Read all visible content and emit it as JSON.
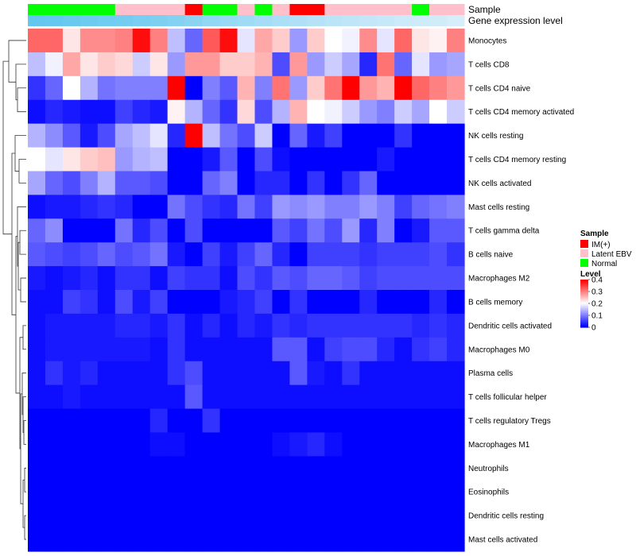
{
  "chart_data": {
    "type": "heatmap",
    "annotation_tracks": [
      {
        "name": "Sample",
        "values": [
          "Normal",
          "Normal",
          "Normal",
          "Normal",
          "Normal",
          "Latent EBV",
          "Latent EBV",
          "Latent EBV",
          "Latent EBV",
          "IM(+)",
          "Normal",
          "Normal",
          "Latent EBV",
          "Normal",
          "Latent EBV",
          "IM(+)",
          "IM(+)",
          "Latent EBV",
          "Latent EBV",
          "Latent EBV",
          "Latent EBV",
          "Latent EBV",
          "Normal",
          "Latent EBV",
          "Latent EBV"
        ]
      },
      {
        "name": "Gene expression level",
        "values": [
          0.95,
          0.93,
          0.91,
          0.88,
          0.86,
          0.84,
          0.8,
          0.76,
          0.72,
          0.68,
          0.62,
          0.58,
          0.53,
          0.5,
          0.45,
          0.42,
          0.38,
          0.34,
          0.31,
          0.28,
          0.25,
          0.22,
          0.2,
          0.18,
          0.15
        ]
      }
    ],
    "rows": [
      "Monocytes",
      "T cells CD8",
      "T cells CD4 naive",
      "T cells CD4 memory activated",
      "NK cells resting",
      "T cells CD4 memory resting",
      "NK cells activated",
      "Mast cells resting",
      "T cells gamma delta",
      "B cells naive",
      "Macrophages M2",
      "B cells memory",
      "Dendritic cells activated",
      "Macrophages M0",
      "Plasma cells",
      "T cells follicular helper",
      "T cells regulatory  Tregs",
      "Macrophages M1",
      "Neutrophils",
      "Eosinophils",
      "Dendritic cells resting",
      "Mast cells activated"
    ],
    "values": [
      [
        0.32,
        0.32,
        0.22,
        0.29,
        0.29,
        0.3,
        0.39,
        0.3,
        0.15,
        0.08,
        0.33,
        0.39,
        0.18,
        0.27,
        0.24,
        0.12,
        0.24,
        0.2,
        0.19,
        0.29,
        0.18,
        0.32,
        0.22,
        0.21,
        0.3
      ],
      [
        0.15,
        0.19,
        0.27,
        0.22,
        0.24,
        0.23,
        0.16,
        0.22,
        0.12,
        0.28,
        0.28,
        0.24,
        0.24,
        0.26,
        0.06,
        0.28,
        0.12,
        0.16,
        0.13,
        0.03,
        0.31,
        0.08,
        0.18,
        0.12,
        0.13
      ],
      [
        0.04,
        0.08,
        0.2,
        0.14,
        0.09,
        0.1,
        0.1,
        0.1,
        0.4,
        0.0,
        0.1,
        0.07,
        0.26,
        0.1,
        0.31,
        0.12,
        0.24,
        0.31,
        0.4,
        0.28,
        0.26,
        0.4,
        0.32,
        0.3,
        0.28
      ],
      [
        0.01,
        0.03,
        0.02,
        0.01,
        0.01,
        0.05,
        0.03,
        0.02,
        0.21,
        0.14,
        0.08,
        0.04,
        0.23,
        0.06,
        0.14,
        0.26,
        0.2,
        0.19,
        0.16,
        0.12,
        0.1,
        0.16,
        0.13,
        0.2,
        0.16
      ],
      [
        0.14,
        0.11,
        0.07,
        0.02,
        0.06,
        0.13,
        0.15,
        0.18,
        0.03,
        0.4,
        0.15,
        0.09,
        0.06,
        0.16,
        0.0,
        0.08,
        0.02,
        0.05,
        0.0,
        0.0,
        0.0,
        0.04,
        0.0,
        0.0,
        0.0
      ],
      [
        0.2,
        0.18,
        0.22,
        0.24,
        0.25,
        0.12,
        0.14,
        0.15,
        0.0,
        0.0,
        0.02,
        0.07,
        0.0,
        0.06,
        0.01,
        0.0,
        0.0,
        0.0,
        0.0,
        0.0,
        0.02,
        0.0,
        0.0,
        0.0,
        0.0
      ],
      [
        0.13,
        0.08,
        0.06,
        0.1,
        0.14,
        0.07,
        0.07,
        0.06,
        0.0,
        0.0,
        0.08,
        0.1,
        0.0,
        0.03,
        0.03,
        0.0,
        0.04,
        0.0,
        0.04,
        0.08,
        0.0,
        0.0,
        0.0,
        0.0,
        0.0
      ],
      [
        0.01,
        0.02,
        0.02,
        0.03,
        0.04,
        0.03,
        0.0,
        0.0,
        0.09,
        0.06,
        0.04,
        0.03,
        0.09,
        0.05,
        0.12,
        0.11,
        0.12,
        0.1,
        0.1,
        0.12,
        0.1,
        0.05,
        0.08,
        0.09,
        0.1
      ],
      [
        0.08,
        0.11,
        0.0,
        0.0,
        0.0,
        0.09,
        0.03,
        0.06,
        0.0,
        0.06,
        0.0,
        0.0,
        0.0,
        0.0,
        0.07,
        0.05,
        0.09,
        0.06,
        0.12,
        0.03,
        0.1,
        0.0,
        0.02,
        0.07,
        0.07
      ],
      [
        0.07,
        0.06,
        0.05,
        0.06,
        0.08,
        0.06,
        0.07,
        0.09,
        0.02,
        0.0,
        0.05,
        0.02,
        0.05,
        0.08,
        0.03,
        0.0,
        0.05,
        0.05,
        0.05,
        0.04,
        0.05,
        0.05,
        0.05,
        0.06,
        0.04
      ],
      [
        0.02,
        0.01,
        0.02,
        0.03,
        0.01,
        0.04,
        0.04,
        0.01,
        0.05,
        0.04,
        0.04,
        0.01,
        0.06,
        0.04,
        0.07,
        0.06,
        0.08,
        0.08,
        0.07,
        0.05,
        0.06,
        0.06,
        0.06,
        0.06,
        0.06
      ],
      [
        0.01,
        0.01,
        0.05,
        0.04,
        0.01,
        0.06,
        0.02,
        0.05,
        0.0,
        0.0,
        0.0,
        0.02,
        0.03,
        0.05,
        0.0,
        0.04,
        0.0,
        0.0,
        0.0,
        0.03,
        0.0,
        0.0,
        0.0,
        0.03,
        0.0
      ],
      [
        0.01,
        0.02,
        0.02,
        0.02,
        0.02,
        0.03,
        0.03,
        0.02,
        0.04,
        0.01,
        0.03,
        0.01,
        0.03,
        0.02,
        0.04,
        0.03,
        0.04,
        0.04,
        0.04,
        0.04,
        0.04,
        0.04,
        0.03,
        0.04,
        0.03
      ],
      [
        0.01,
        0.02,
        0.02,
        0.02,
        0.02,
        0.02,
        0.02,
        0.01,
        0.04,
        0.01,
        0.01,
        0.01,
        0.01,
        0.01,
        0.07,
        0.07,
        0.01,
        0.05,
        0.06,
        0.06,
        0.03,
        0.01,
        0.04,
        0.05,
        0.03
      ],
      [
        0.01,
        0.04,
        0.02,
        0.03,
        0.01,
        0.01,
        0.01,
        0.01,
        0.04,
        0.06,
        0.01,
        0.01,
        0.01,
        0.01,
        0.01,
        0.07,
        0.02,
        0.01,
        0.04,
        0.01,
        0.01,
        0.01,
        0.01,
        0.01,
        0.01
      ],
      [
        0.01,
        0.01,
        0.02,
        0.01,
        0.01,
        0.01,
        0.01,
        0.01,
        0.01,
        0.07,
        0.01,
        0.01,
        0.01,
        0.01,
        0.01,
        0.01,
        0.01,
        0.01,
        0.01,
        0.01,
        0.01,
        0.01,
        0.01,
        0.01,
        0.01
      ],
      [
        0.0,
        0.0,
        0.0,
        0.0,
        0.0,
        0.0,
        0.0,
        0.03,
        0.0,
        0.0,
        0.04,
        0.0,
        0.0,
        0.0,
        0.0,
        0.0,
        0.0,
        0.0,
        0.0,
        0.0,
        0.0,
        0.0,
        0.0,
        0.0,
        0.0
      ],
      [
        0.0,
        0.0,
        0.0,
        0.0,
        0.0,
        0.0,
        0.0,
        0.01,
        0.01,
        0.0,
        0.0,
        0.0,
        0.0,
        0.0,
        0.01,
        0.02,
        0.03,
        0.01,
        0.0,
        0.0,
        0.0,
        0.0,
        0.0,
        0.0,
        0.0
      ],
      [
        0.0,
        0.0,
        0.0,
        0.0,
        0.0,
        0.0,
        0.0,
        0.0,
        0.0,
        0.0,
        0.0,
        0.0,
        0.0,
        0.0,
        0.0,
        0.0,
        0.0,
        0.0,
        0.0,
        0.0,
        0.0,
        0.0,
        0.0,
        0.0,
        0.0
      ],
      [
        0.0,
        0.0,
        0.0,
        0.0,
        0.0,
        0.0,
        0.0,
        0.0,
        0.0,
        0.0,
        0.0,
        0.0,
        0.0,
        0.0,
        0.0,
        0.0,
        0.0,
        0.0,
        0.0,
        0.0,
        0.0,
        0.0,
        0.0,
        0.0,
        0.0
      ],
      [
        0.0,
        0.0,
        0.0,
        0.0,
        0.0,
        0.0,
        0.0,
        0.0,
        0.0,
        0.0,
        0.0,
        0.0,
        0.0,
        0.0,
        0.0,
        0.0,
        0.0,
        0.0,
        0.0,
        0.0,
        0.0,
        0.0,
        0.0,
        0.0,
        0.0
      ],
      [
        0.0,
        0.0,
        0.0,
        0.0,
        0.0,
        0.0,
        0.0,
        0.0,
        0.0,
        0.0,
        0.0,
        0.0,
        0.0,
        0.0,
        0.0,
        0.0,
        0.0,
        0.0,
        0.0,
        0.0,
        0.0,
        0.0,
        0.0,
        0.0,
        0.0
      ]
    ],
    "color_scale": {
      "min": 0,
      "max": 0.4,
      "low": "#0000ff",
      "mid": "#ffffff",
      "high": "#ff0000",
      "midpoint": 0.2,
      "ticks": [
        "0.4",
        "0.3",
        "0.2",
        "0.1",
        "0"
      ]
    },
    "legends": [
      {
        "title": "Sample",
        "entries": [
          {
            "label": "IM(+)",
            "color": "#ff0000"
          },
          {
            "label": "Latent EBV",
            "color": "#ffc0cb"
          },
          {
            "label": "Normal",
            "color": "#00ff00"
          }
        ]
      },
      {
        "title": "Level"
      }
    ],
    "row_dendrogram": "hierarchical clustering tree shown on left"
  }
}
